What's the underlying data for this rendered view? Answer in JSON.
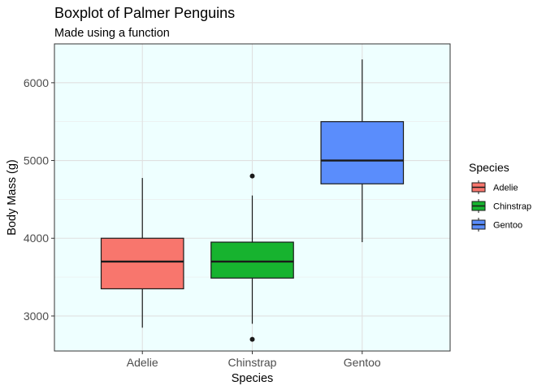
{
  "chart_data": {
    "type": "boxplot",
    "title": "Boxplot of Palmer Penguins",
    "subtitle": "Made using a function",
    "xlabel": "Species",
    "ylabel": "Body Mass (g)",
    "categories": [
      "Adelie",
      "Chinstrap",
      "Gentoo"
    ],
    "ylim": [
      2550,
      6500
    ],
    "yticks": [
      3000,
      4000,
      5000,
      6000
    ],
    "grid": true,
    "panel_background": "#eeffff",
    "legend": {
      "title": "Species",
      "position": "right",
      "entries": [
        "Adelie",
        "Chinstrap",
        "Gentoo"
      ]
    },
    "boxes": [
      {
        "name": "Adelie",
        "color": "#f8766d",
        "whisker_low": 2850,
        "q1": 3350,
        "median": 3700,
        "q3": 4000,
        "whisker_high": 4775,
        "outliers": []
      },
      {
        "name": "Chinstrap",
        "color": "#17b32f",
        "whisker_low": 2900,
        "q1": 3488,
        "median": 3700,
        "q3": 3950,
        "whisker_high": 4550,
        "outliers": [
          2700,
          4800
        ]
      },
      {
        "name": "Gentoo",
        "color": "#5a8dfc",
        "whisker_low": 3950,
        "q1": 4700,
        "median": 5000,
        "q3": 5500,
        "whisker_high": 6300,
        "outliers": []
      }
    ]
  }
}
